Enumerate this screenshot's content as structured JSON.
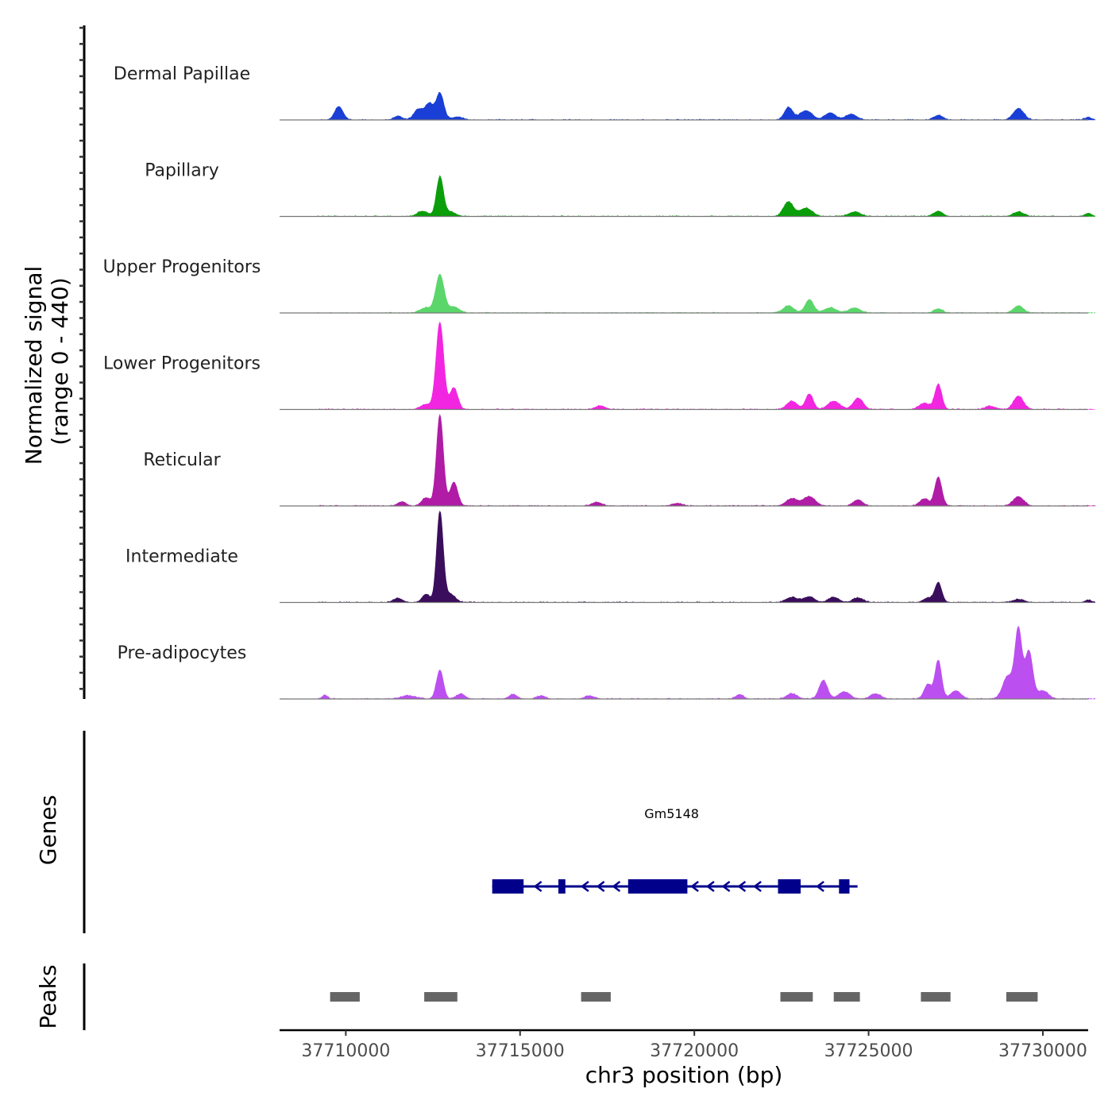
{
  "chart_data": {
    "type": "area",
    "chromosome": "chr3",
    "xlabel": "chr3 position (bp)",
    "ylabel_signal": "Normalized signal",
    "ylabel_signal_range": "(range 0 - 440)",
    "ylabel_genes": "Genes",
    "ylabel_peaks": "Peaks",
    "xlim": [
      37708100,
      37731300
    ],
    "ylim": [
      0,
      440
    ],
    "xticks": [
      37710000,
      37715000,
      37720000,
      37725000,
      37730000
    ],
    "xtick_labels": [
      "37710000",
      "37715000",
      "37720000",
      "37725000",
      "37730000"
    ],
    "signal_end": 37731500,
    "series": [
      {
        "name": "Dermal Papillae",
        "color": "#1a3fd6",
        "peaks": [
          {
            "pos": 37709800,
            "h": 65,
            "w": 120
          },
          {
            "pos": 37711500,
            "h": 18,
            "w": 120
          },
          {
            "pos": 37712100,
            "h": 52,
            "w": 140
          },
          {
            "pos": 37712400,
            "h": 75,
            "w": 110
          },
          {
            "pos": 37712700,
            "h": 130,
            "w": 110
          },
          {
            "pos": 37713200,
            "h": 15,
            "w": 150
          },
          {
            "pos": 37722700,
            "h": 60,
            "w": 120
          },
          {
            "pos": 37723200,
            "h": 45,
            "w": 180
          },
          {
            "pos": 37723900,
            "h": 35,
            "w": 150
          },
          {
            "pos": 37724500,
            "h": 28,
            "w": 160
          },
          {
            "pos": 37727000,
            "h": 22,
            "w": 130
          },
          {
            "pos": 37729300,
            "h": 55,
            "w": 150
          },
          {
            "pos": 37731300,
            "h": 12,
            "w": 100
          }
        ]
      },
      {
        "name": "Papillary",
        "color": "#0a9e0a",
        "peaks": [
          {
            "pos": 37712200,
            "h": 25,
            "w": 150
          },
          {
            "pos": 37712700,
            "h": 190,
            "w": 100
          },
          {
            "pos": 37713000,
            "h": 22,
            "w": 150
          },
          {
            "pos": 37722700,
            "h": 70,
            "w": 140
          },
          {
            "pos": 37723200,
            "h": 40,
            "w": 180
          },
          {
            "pos": 37724600,
            "h": 22,
            "w": 170
          },
          {
            "pos": 37727000,
            "h": 25,
            "w": 130
          },
          {
            "pos": 37729300,
            "h": 22,
            "w": 150
          },
          {
            "pos": 37731300,
            "h": 15,
            "w": 100
          }
        ]
      },
      {
        "name": "Upper Progenitors",
        "color": "#5ad66a",
        "peaks": [
          {
            "pos": 37712300,
            "h": 25,
            "w": 160
          },
          {
            "pos": 37712700,
            "h": 185,
            "w": 120
          },
          {
            "pos": 37713100,
            "h": 30,
            "w": 150
          },
          {
            "pos": 37722700,
            "h": 35,
            "w": 150
          },
          {
            "pos": 37723300,
            "h": 65,
            "w": 120
          },
          {
            "pos": 37723900,
            "h": 25,
            "w": 180
          },
          {
            "pos": 37724600,
            "h": 25,
            "w": 160
          },
          {
            "pos": 37727000,
            "h": 20,
            "w": 120
          },
          {
            "pos": 37729300,
            "h": 35,
            "w": 140
          }
        ]
      },
      {
        "name": "Lower Progenitors",
        "color": "#f226e0",
        "peaks": [
          {
            "pos": 37712300,
            "h": 25,
            "w": 150
          },
          {
            "pos": 37712700,
            "h": 420,
            "w": 110
          },
          {
            "pos": 37713100,
            "h": 105,
            "w": 110
          },
          {
            "pos": 37717300,
            "h": 18,
            "w": 140
          },
          {
            "pos": 37722800,
            "h": 40,
            "w": 150
          },
          {
            "pos": 37723300,
            "h": 75,
            "w": 110
          },
          {
            "pos": 37724000,
            "h": 40,
            "w": 170
          },
          {
            "pos": 37724700,
            "h": 55,
            "w": 140
          },
          {
            "pos": 37726600,
            "h": 30,
            "w": 150
          },
          {
            "pos": 37727000,
            "h": 120,
            "w": 100
          },
          {
            "pos": 37728500,
            "h": 15,
            "w": 150
          },
          {
            "pos": 37729300,
            "h": 65,
            "w": 140
          }
        ]
      },
      {
        "name": "Reticular",
        "color": "#b01ca6",
        "peaks": [
          {
            "pos": 37711600,
            "h": 20,
            "w": 120
          },
          {
            "pos": 37712300,
            "h": 40,
            "w": 120
          },
          {
            "pos": 37712700,
            "h": 440,
            "w": 100
          },
          {
            "pos": 37713100,
            "h": 115,
            "w": 110
          },
          {
            "pos": 37717200,
            "h": 18,
            "w": 140
          },
          {
            "pos": 37719500,
            "h": 12,
            "w": 150
          },
          {
            "pos": 37722800,
            "h": 35,
            "w": 170
          },
          {
            "pos": 37723300,
            "h": 45,
            "w": 170
          },
          {
            "pos": 37724700,
            "h": 30,
            "w": 130
          },
          {
            "pos": 37726600,
            "h": 35,
            "w": 130
          },
          {
            "pos": 37727000,
            "h": 140,
            "w": 100
          },
          {
            "pos": 37729300,
            "h": 45,
            "w": 150
          }
        ]
      },
      {
        "name": "Intermediate",
        "color": "#3a0e5c",
        "peaks": [
          {
            "pos": 37711500,
            "h": 20,
            "w": 130
          },
          {
            "pos": 37712300,
            "h": 40,
            "w": 110
          },
          {
            "pos": 37712700,
            "h": 440,
            "w": 95
          },
          {
            "pos": 37713000,
            "h": 40,
            "w": 140
          },
          {
            "pos": 37722800,
            "h": 25,
            "w": 170
          },
          {
            "pos": 37723300,
            "h": 28,
            "w": 150
          },
          {
            "pos": 37724000,
            "h": 25,
            "w": 150
          },
          {
            "pos": 37724700,
            "h": 22,
            "w": 150
          },
          {
            "pos": 37726700,
            "h": 22,
            "w": 130
          },
          {
            "pos": 37727000,
            "h": 95,
            "w": 100
          },
          {
            "pos": 37729300,
            "h": 15,
            "w": 160
          },
          {
            "pos": 37731300,
            "h": 12,
            "w": 90
          }
        ]
      },
      {
        "name": "Pre-adipocytes",
        "color": "#bc4ff0",
        "peaks": [
          {
            "pos": 37709400,
            "h": 18,
            "w": 80
          },
          {
            "pos": 37711800,
            "h": 15,
            "w": 220
          },
          {
            "pos": 37712700,
            "h": 140,
            "w": 100
          },
          {
            "pos": 37713300,
            "h": 25,
            "w": 120
          },
          {
            "pos": 37714800,
            "h": 22,
            "w": 120
          },
          {
            "pos": 37715600,
            "h": 15,
            "w": 120
          },
          {
            "pos": 37717000,
            "h": 15,
            "w": 140
          },
          {
            "pos": 37721300,
            "h": 22,
            "w": 110
          },
          {
            "pos": 37722800,
            "h": 25,
            "w": 150
          },
          {
            "pos": 37723700,
            "h": 90,
            "w": 120
          },
          {
            "pos": 37724300,
            "h": 35,
            "w": 160
          },
          {
            "pos": 37725200,
            "h": 25,
            "w": 150
          },
          {
            "pos": 37726700,
            "h": 70,
            "w": 110
          },
          {
            "pos": 37727000,
            "h": 185,
            "w": 95
          },
          {
            "pos": 37727500,
            "h": 40,
            "w": 150
          },
          {
            "pos": 37729000,
            "h": 110,
            "w": 150
          },
          {
            "pos": 37729300,
            "h": 330,
            "w": 100
          },
          {
            "pos": 37729600,
            "h": 230,
            "w": 110
          },
          {
            "pos": 37730000,
            "h": 40,
            "w": 150
          }
        ]
      }
    ],
    "genes": [
      {
        "name": "Gm5148",
        "strand": "-",
        "start": 37714200,
        "end": 37724500,
        "exons": [
          [
            37714200,
            37715100
          ],
          [
            37716100,
            37716300
          ],
          [
            37718100,
            37719800
          ],
          [
            37722400,
            37723050
          ],
          [
            37724150,
            37724450
          ]
        ],
        "color": "#00008b"
      }
    ],
    "peak_regions": [
      [
        37709550,
        37710400
      ],
      [
        37712250,
        37713200
      ],
      [
        37716750,
        37717600
      ],
      [
        37722470,
        37723400
      ],
      [
        37724000,
        37724750
      ],
      [
        37726500,
        37727350
      ],
      [
        37728950,
        37729850
      ]
    ],
    "peak_region_color": "#666666"
  }
}
